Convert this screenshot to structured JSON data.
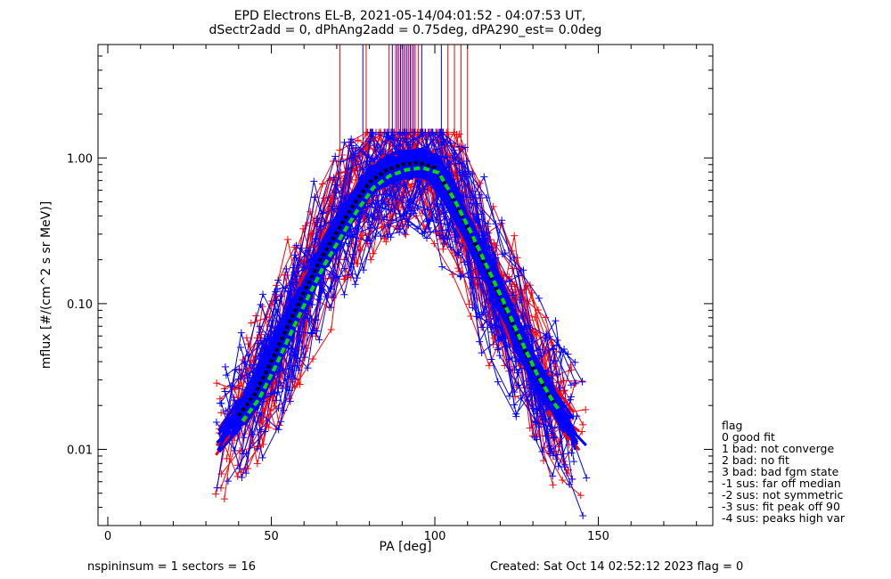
{
  "chart_data": {
    "type": "line",
    "title_line1": "EPD Electrons EL-B, 2021-05-14/04:01:52 - 04:07:53 UT,",
    "title_line2": "dSectr2add = 0, dPhAng2add = 0.75deg, dPA290_est=    0.0deg",
    "xlabel": "PA [deg]",
    "ylabel": "mflux [#/(cm^2 s sr MeV)]",
    "xlim": [
      -3,
      185
    ],
    "ylim": [
      0.003,
      6.0
    ],
    "yscale": "log",
    "x_ticks": [
      0,
      50,
      100,
      150
    ],
    "x_tick_labels": [
      "0",
      "50",
      "100",
      "150"
    ],
    "y_ticks": [
      0.01,
      0.1,
      1.0
    ],
    "y_tick_labels": [
      "0.01",
      "0.10",
      "1.00"
    ],
    "grid": false,
    "series_colors": {
      "a": "#ff0000",
      "b": "#0000ff",
      "fit_dark": "#000000",
      "fit_light": "#00dd00"
    },
    "fit_curve": {
      "x": [
        40,
        45,
        50,
        55,
        60,
        65,
        70,
        75,
        80,
        85,
        90,
        95,
        100,
        105,
        110,
        115,
        120,
        125,
        130,
        135,
        137
      ],
      "y": [
        0.017,
        0.024,
        0.04,
        0.07,
        0.12,
        0.2,
        0.31,
        0.47,
        0.68,
        0.82,
        0.9,
        0.93,
        0.86,
        0.55,
        0.33,
        0.19,
        0.11,
        0.062,
        0.036,
        0.023,
        0.02
      ]
    },
    "vertical_markers": {
      "a_x": [
        71,
        79,
        86,
        88,
        89,
        90,
        91,
        92,
        93,
        94,
        95,
        104,
        106,
        108,
        110
      ],
      "b_x": [
        78,
        87,
        88.5,
        89.5,
        90.5,
        91.5,
        92.5,
        93.5,
        96,
        102
      ],
      "y_top": 6.0,
      "y_bottom": 1.1
    },
    "legend": {
      "title": "flag",
      "entries": [
        " 0 good fit",
        " 1 bad: not converge",
        " 2 bad: no fit",
        " 3 bad: bad fgm state",
        "-1 sus: far off median",
        "-2 sus: not symmetric",
        "-3 sus: fit peak off 90",
        "-4 sus: peaks high var"
      ]
    },
    "footer": {
      "left": "nspininsum =  1  sectors = 16",
      "right": "Created: Sat Oct 14 02:52:12 2023   flag = 0"
    }
  }
}
